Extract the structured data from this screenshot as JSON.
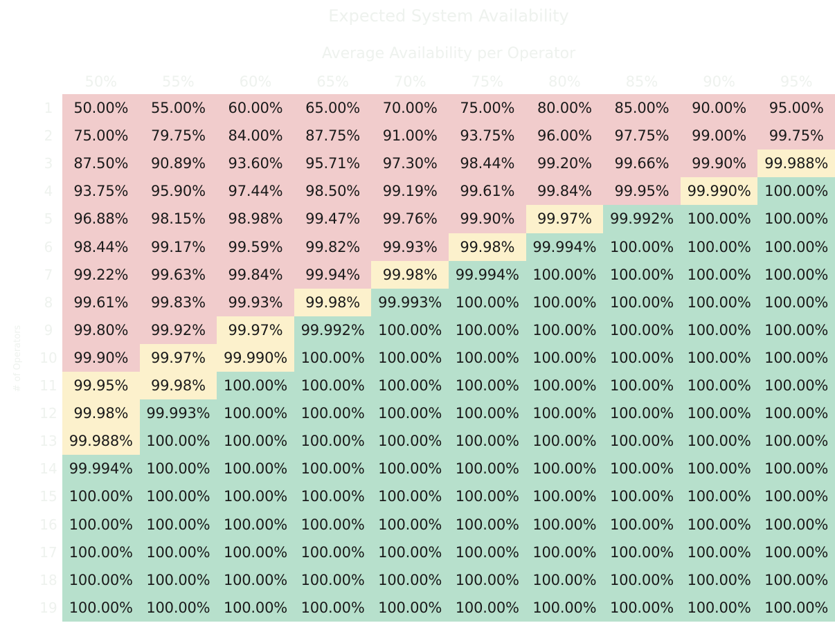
{
  "title": "Expected System Availability",
  "column_title": "Average Availability per Operator",
  "row_title": "# of Operators",
  "colors": {
    "red": "#f1cccc",
    "yellow": "#fcf1cc",
    "green": "#b7e0cc",
    "header_text": "#eef2ee"
  },
  "chart_data": {
    "type": "heatmap",
    "title": "Expected System Availability",
    "xlabel": "Average Availability per Operator",
    "ylabel": "# of Operators",
    "columns": [
      "50%",
      "55%",
      "60%",
      "65%",
      "70%",
      "75%",
      "80%",
      "85%",
      "90%",
      "95%"
    ],
    "rows": [
      "1",
      "2",
      "3",
      "4",
      "5",
      "6",
      "7",
      "8",
      "9",
      "10",
      "11",
      "12",
      "13",
      "14",
      "15",
      "16",
      "17",
      "18",
      "19"
    ],
    "cells": [
      [
        "50.00%",
        "55.00%",
        "60.00%",
        "65.00%",
        "70.00%",
        "75.00%",
        "80.00%",
        "85.00%",
        "90.00%",
        "95.00%"
      ],
      [
        "75.00%",
        "79.75%",
        "84.00%",
        "87.75%",
        "91.00%",
        "93.75%",
        "96.00%",
        "97.75%",
        "99.00%",
        "99.75%"
      ],
      [
        "87.50%",
        "90.89%",
        "93.60%",
        "95.71%",
        "97.30%",
        "98.44%",
        "99.20%",
        "99.66%",
        "99.90%",
        "99.988%"
      ],
      [
        "93.75%",
        "95.90%",
        "97.44%",
        "98.50%",
        "99.19%",
        "99.61%",
        "99.84%",
        "99.95%",
        "99.990%",
        "100.00%"
      ],
      [
        "96.88%",
        "98.15%",
        "98.98%",
        "99.47%",
        "99.76%",
        "99.90%",
        "99.97%",
        "99.992%",
        "100.00%",
        "100.00%"
      ],
      [
        "98.44%",
        "99.17%",
        "99.59%",
        "99.82%",
        "99.93%",
        "99.98%",
        "99.994%",
        "100.00%",
        "100.00%",
        "100.00%"
      ],
      [
        "99.22%",
        "99.63%",
        "99.84%",
        "99.94%",
        "99.98%",
        "99.994%",
        "100.00%",
        "100.00%",
        "100.00%",
        "100.00%"
      ],
      [
        "99.61%",
        "99.83%",
        "99.93%",
        "99.98%",
        "99.993%",
        "100.00%",
        "100.00%",
        "100.00%",
        "100.00%",
        "100.00%"
      ],
      [
        "99.80%",
        "99.92%",
        "99.97%",
        "99.992%",
        "100.00%",
        "100.00%",
        "100.00%",
        "100.00%",
        "100.00%",
        "100.00%"
      ],
      [
        "99.90%",
        "99.97%",
        "99.990%",
        "100.00%",
        "100.00%",
        "100.00%",
        "100.00%",
        "100.00%",
        "100.00%",
        "100.00%"
      ],
      [
        "99.95%",
        "99.98%",
        "100.00%",
        "100.00%",
        "100.00%",
        "100.00%",
        "100.00%",
        "100.00%",
        "100.00%",
        "100.00%"
      ],
      [
        "99.98%",
        "99.993%",
        "100.00%",
        "100.00%",
        "100.00%",
        "100.00%",
        "100.00%",
        "100.00%",
        "100.00%",
        "100.00%"
      ],
      [
        "99.988%",
        "100.00%",
        "100.00%",
        "100.00%",
        "100.00%",
        "100.00%",
        "100.00%",
        "100.00%",
        "100.00%",
        "100.00%"
      ],
      [
        "99.994%",
        "100.00%",
        "100.00%",
        "100.00%",
        "100.00%",
        "100.00%",
        "100.00%",
        "100.00%",
        "100.00%",
        "100.00%"
      ],
      [
        "100.00%",
        "100.00%",
        "100.00%",
        "100.00%",
        "100.00%",
        "100.00%",
        "100.00%",
        "100.00%",
        "100.00%",
        "100.00%"
      ],
      [
        "100.00%",
        "100.00%",
        "100.00%",
        "100.00%",
        "100.00%",
        "100.00%",
        "100.00%",
        "100.00%",
        "100.00%",
        "100.00%"
      ],
      [
        "100.00%",
        "100.00%",
        "100.00%",
        "100.00%",
        "100.00%",
        "100.00%",
        "100.00%",
        "100.00%",
        "100.00%",
        "100.00%"
      ],
      [
        "100.00%",
        "100.00%",
        "100.00%",
        "100.00%",
        "100.00%",
        "100.00%",
        "100.00%",
        "100.00%",
        "100.00%",
        "100.00%"
      ],
      [
        "100.00%",
        "100.00%",
        "100.00%",
        "100.00%",
        "100.00%",
        "100.00%",
        "100.00%",
        "100.00%",
        "100.00%",
        "100.00%"
      ]
    ],
    "categories": [
      [
        "r",
        "r",
        "r",
        "r",
        "r",
        "r",
        "r",
        "r",
        "r",
        "r"
      ],
      [
        "r",
        "r",
        "r",
        "r",
        "r",
        "r",
        "r",
        "r",
        "r",
        "r"
      ],
      [
        "r",
        "r",
        "r",
        "r",
        "r",
        "r",
        "r",
        "r",
        "r",
        "y"
      ],
      [
        "r",
        "r",
        "r",
        "r",
        "r",
        "r",
        "r",
        "r",
        "y",
        "g"
      ],
      [
        "r",
        "r",
        "r",
        "r",
        "r",
        "r",
        "y",
        "g",
        "g",
        "g"
      ],
      [
        "r",
        "r",
        "r",
        "r",
        "r",
        "y",
        "g",
        "g",
        "g",
        "g"
      ],
      [
        "r",
        "r",
        "r",
        "r",
        "y",
        "g",
        "g",
        "g",
        "g",
        "g"
      ],
      [
        "r",
        "r",
        "r",
        "y",
        "g",
        "g",
        "g",
        "g",
        "g",
        "g"
      ],
      [
        "r",
        "r",
        "y",
        "g",
        "g",
        "g",
        "g",
        "g",
        "g",
        "g"
      ],
      [
        "r",
        "y",
        "y",
        "g",
        "g",
        "g",
        "g",
        "g",
        "g",
        "g"
      ],
      [
        "y",
        "y",
        "g",
        "g",
        "g",
        "g",
        "g",
        "g",
        "g",
        "g"
      ],
      [
        "y",
        "g",
        "g",
        "g",
        "g",
        "g",
        "g",
        "g",
        "g",
        "g"
      ],
      [
        "y",
        "g",
        "g",
        "g",
        "g",
        "g",
        "g",
        "g",
        "g",
        "g"
      ],
      [
        "g",
        "g",
        "g",
        "g",
        "g",
        "g",
        "g",
        "g",
        "g",
        "g"
      ],
      [
        "g",
        "g",
        "g",
        "g",
        "g",
        "g",
        "g",
        "g",
        "g",
        "g"
      ],
      [
        "g",
        "g",
        "g",
        "g",
        "g",
        "g",
        "g",
        "g",
        "g",
        "g"
      ],
      [
        "g",
        "g",
        "g",
        "g",
        "g",
        "g",
        "g",
        "g",
        "g",
        "g"
      ],
      [
        "g",
        "g",
        "g",
        "g",
        "g",
        "g",
        "g",
        "g",
        "g",
        "g"
      ],
      [
        "g",
        "g",
        "g",
        "g",
        "g",
        "g",
        "g",
        "g",
        "g",
        "g"
      ]
    ]
  }
}
